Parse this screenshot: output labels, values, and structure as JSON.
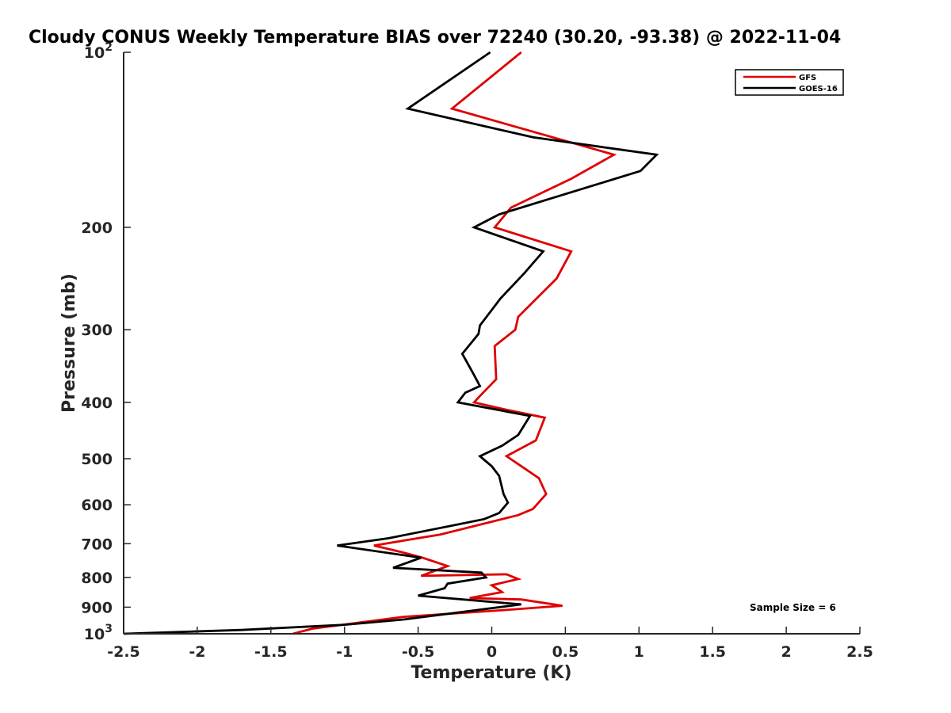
{
  "chart_data": {
    "type": "line",
    "title": "Cloudy CONUS Weekly Temperature BIAS over 72240 (30.20, -93.38) @ 2022-11-04",
    "xlabel": "Temperature (K)",
    "ylabel": "Pressure (mb)",
    "xlim": [
      -2.5,
      2.5
    ],
    "ylim": [
      1000,
      100
    ],
    "yscale": "log",
    "reversed_y": true,
    "x_ticks": [
      -2.5,
      -2,
      -1.5,
      -1,
      -0.5,
      0,
      0.5,
      1,
      1.5,
      2,
      2.5
    ],
    "x_tick_labels": [
      "-2.5",
      "-2",
      "-1.5",
      "-1",
      "-0.5",
      "0",
      "0.5",
      "1",
      "1.5",
      "2",
      "2.5"
    ],
    "y_ticks": [
      100,
      200,
      300,
      400,
      500,
      600,
      700,
      800,
      900,
      1000
    ],
    "y_tick_labels": [
      {
        "base": "10",
        "exp": "2"
      },
      {
        "base": "200",
        "exp": ""
      },
      {
        "base": "300",
        "exp": ""
      },
      {
        "base": "400",
        "exp": ""
      },
      {
        "base": "500",
        "exp": ""
      },
      {
        "base": "600",
        "exp": ""
      },
      {
        "base": "700",
        "exp": ""
      },
      {
        "base": "800",
        "exp": ""
      },
      {
        "base": "900",
        "exp": ""
      },
      {
        "base": "10",
        "exp": "3"
      }
    ],
    "legend_position": "top-right",
    "annotation": "Sample Size = 6",
    "series": [
      {
        "name": "GFS",
        "color": "#e00000",
        "points": [
          {
            "x": 0.2,
            "p": 100
          },
          {
            "x": -0.27,
            "p": 125
          },
          {
            "x": 0.83,
            "p": 150
          },
          {
            "x": 0.54,
            "p": 165
          },
          {
            "x": 0.13,
            "p": 185
          },
          {
            "x": 0.02,
            "p": 200
          },
          {
            "x": 0.54,
            "p": 220
          },
          {
            "x": 0.44,
            "p": 245
          },
          {
            "x": 0.18,
            "p": 285
          },
          {
            "x": 0.16,
            "p": 300
          },
          {
            "x": 0.02,
            "p": 320
          },
          {
            "x": 0.03,
            "p": 365
          },
          {
            "x": -0.08,
            "p": 390
          },
          {
            "x": -0.12,
            "p": 400
          },
          {
            "x": 0.1,
            "p": 412
          },
          {
            "x": 0.36,
            "p": 425
          },
          {
            "x": 0.3,
            "p": 465
          },
          {
            "x": 0.1,
            "p": 495
          },
          {
            "x": 0.32,
            "p": 540
          },
          {
            "x": 0.37,
            "p": 575
          },
          {
            "x": 0.28,
            "p": 610
          },
          {
            "x": 0.18,
            "p": 625
          },
          {
            "x": -0.35,
            "p": 675
          },
          {
            "x": -0.8,
            "p": 705
          },
          {
            "x": -0.6,
            "p": 725
          },
          {
            "x": -0.47,
            "p": 740
          },
          {
            "x": -0.3,
            "p": 765
          },
          {
            "x": -0.48,
            "p": 795
          },
          {
            "x": 0.1,
            "p": 790
          },
          {
            "x": 0.18,
            "p": 805
          },
          {
            "x": 0.0,
            "p": 825
          },
          {
            "x": 0.07,
            "p": 848
          },
          {
            "x": -0.15,
            "p": 868
          },
          {
            "x": 0.2,
            "p": 873
          },
          {
            "x": 0.48,
            "p": 895
          },
          {
            "x": 0.1,
            "p": 910
          },
          {
            "x": -0.6,
            "p": 935
          },
          {
            "x": -1.22,
            "p": 980
          },
          {
            "x": -1.35,
            "p": 1000
          }
        ]
      },
      {
        "name": "GOES-16",
        "color": "#000000",
        "points": [
          {
            "x": -0.01,
            "p": 100
          },
          {
            "x": -0.57,
            "p": 125
          },
          {
            "x": 0.28,
            "p": 140
          },
          {
            "x": 1.12,
            "p": 150
          },
          {
            "x": 1.01,
            "p": 160
          },
          {
            "x": 0.26,
            "p": 183
          },
          {
            "x": 0.05,
            "p": 190
          },
          {
            "x": -0.12,
            "p": 200
          },
          {
            "x": 0.35,
            "p": 220
          },
          {
            "x": 0.22,
            "p": 240
          },
          {
            "x": 0.06,
            "p": 265
          },
          {
            "x": -0.08,
            "p": 295
          },
          {
            "x": -0.09,
            "p": 305
          },
          {
            "x": -0.2,
            "p": 330
          },
          {
            "x": -0.13,
            "p": 355
          },
          {
            "x": -0.08,
            "p": 375
          },
          {
            "x": -0.18,
            "p": 385
          },
          {
            "x": -0.23,
            "p": 400
          },
          {
            "x": 0.26,
            "p": 422
          },
          {
            "x": 0.18,
            "p": 455
          },
          {
            "x": 0.07,
            "p": 475
          },
          {
            "x": -0.08,
            "p": 495
          },
          {
            "x": 0.0,
            "p": 515
          },
          {
            "x": 0.05,
            "p": 535
          },
          {
            "x": 0.08,
            "p": 575
          },
          {
            "x": 0.11,
            "p": 595
          },
          {
            "x": 0.05,
            "p": 620
          },
          {
            "x": -0.05,
            "p": 635
          },
          {
            "x": -0.25,
            "p": 650
          },
          {
            "x": -0.7,
            "p": 685
          },
          {
            "x": -1.05,
            "p": 705
          },
          {
            "x": -0.48,
            "p": 740
          },
          {
            "x": -0.67,
            "p": 770
          },
          {
            "x": -0.07,
            "p": 785
          },
          {
            "x": -0.04,
            "p": 800
          },
          {
            "x": -0.3,
            "p": 820
          },
          {
            "x": -0.32,
            "p": 835
          },
          {
            "x": -0.5,
            "p": 860
          },
          {
            "x": 0.2,
            "p": 890
          },
          {
            "x": -0.6,
            "p": 945
          },
          {
            "x": -1.0,
            "p": 965
          },
          {
            "x": -1.7,
            "p": 985
          },
          {
            "x": -2.5,
            "p": 1000
          }
        ]
      }
    ]
  }
}
